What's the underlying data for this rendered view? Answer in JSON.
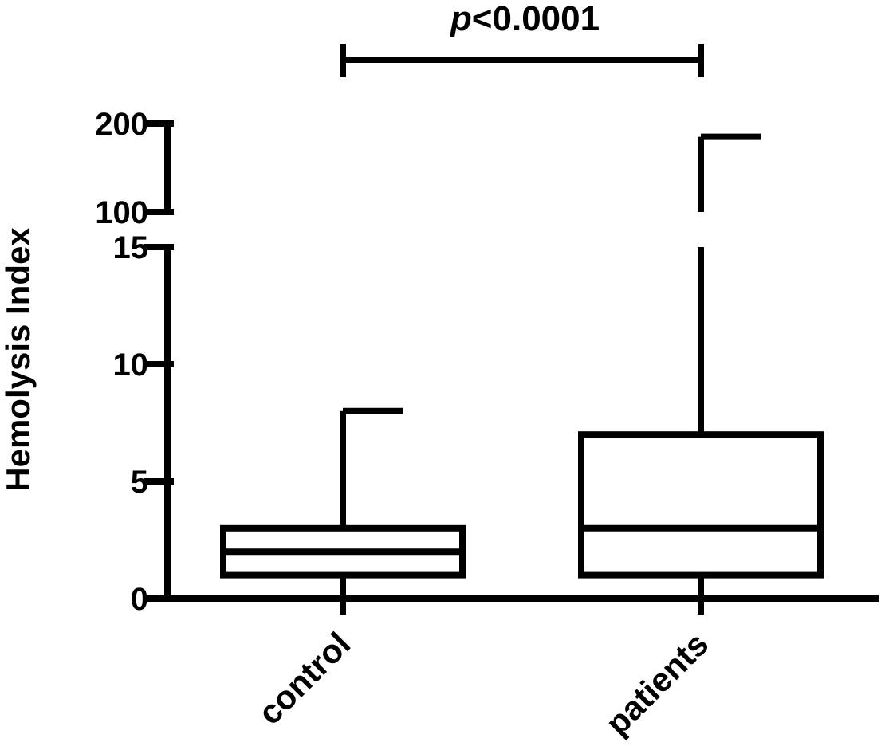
{
  "chart_data": {
    "type": "box",
    "ylabel": "Hemolysis Index",
    "xlabel": "",
    "title": "",
    "axis_break": {
      "lower": [
        0,
        15
      ],
      "upper": [
        100,
        200
      ]
    },
    "y_ticks_lower": [
      {
        "value": 0,
        "label": "0"
      },
      {
        "value": 5,
        "label": "5"
      },
      {
        "value": 10,
        "label": "10"
      },
      {
        "value": 15,
        "label": "15"
      }
    ],
    "y_ticks_upper": [
      {
        "value": 100,
        "label": "100"
      },
      {
        "value": 200,
        "label": "200"
      }
    ],
    "categories": [
      "control",
      "patients"
    ],
    "boxes": [
      {
        "name": "control",
        "min": 0,
        "q1": 1,
        "median": 2,
        "q3": 3,
        "max": 8
      },
      {
        "name": "patients",
        "min": 0,
        "q1": 1,
        "median": 3,
        "q3": 7,
        "max": 185
      }
    ],
    "significance": {
      "text_italic": "p",
      "text_rest": "<0.0001",
      "between": [
        "control",
        "patients"
      ]
    }
  }
}
